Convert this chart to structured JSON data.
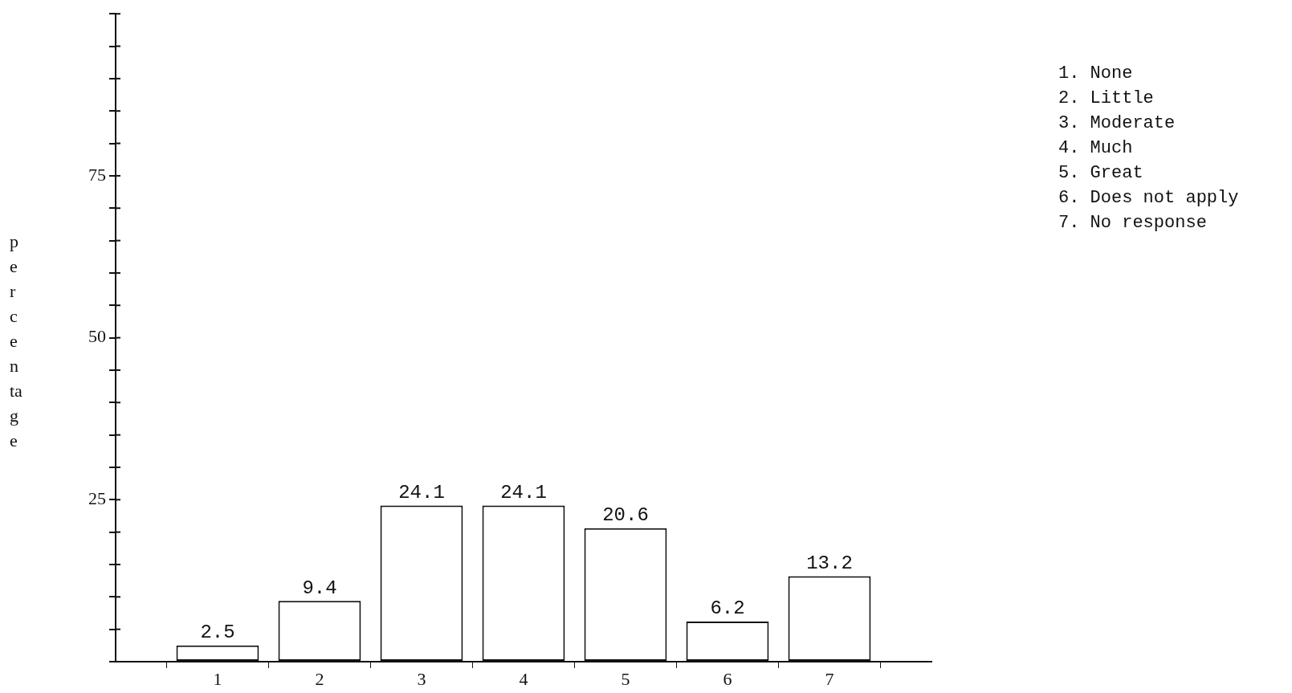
{
  "chart_data": {
    "type": "bar",
    "ylabel": "percentage",
    "categories": [
      "1",
      "2",
      "3",
      "4",
      "5",
      "6",
      "7"
    ],
    "values": [
      2.5,
      9.4,
      24.1,
      24.1,
      20.6,
      6.2,
      13.2
    ],
    "color": "#ffffff",
    "data_labels": true,
    "grid": false,
    "legend": false,
    "ylim": [
      0,
      100
    ],
    "yticks": [
      {
        "value": 0,
        "label": null
      },
      {
        "value": 5,
        "label": null
      },
      {
        "value": 10,
        "label": null
      },
      {
        "value": 15,
        "label": null
      },
      {
        "value": 20,
        "label": null
      },
      25,
      {
        "value": 30,
        "label": null
      },
      {
        "value": 35,
        "label": null
      },
      {
        "value": 40,
        "label": null
      },
      {
        "value": 45,
        "label": null
      },
      50,
      {
        "value": 55,
        "label": null
      },
      {
        "value": 60,
        "label": null
      },
      {
        "value": 65,
        "label": null
      },
      {
        "value": 70,
        "label": null
      },
      75,
      {
        "value": 80,
        "label": null
      },
      {
        "value": 85,
        "label": null
      },
      {
        "value": 90,
        "label": null
      },
      {
        "value": 95,
        "label": null
      },
      {
        "value": 100,
        "label": null
      }
    ],
    "annotations": [
      "1. None",
      "2. Little",
      "3. Moderate",
      "4. Much",
      "5. Great",
      "6. Does not apply",
      "7. No response"
    ]
  }
}
